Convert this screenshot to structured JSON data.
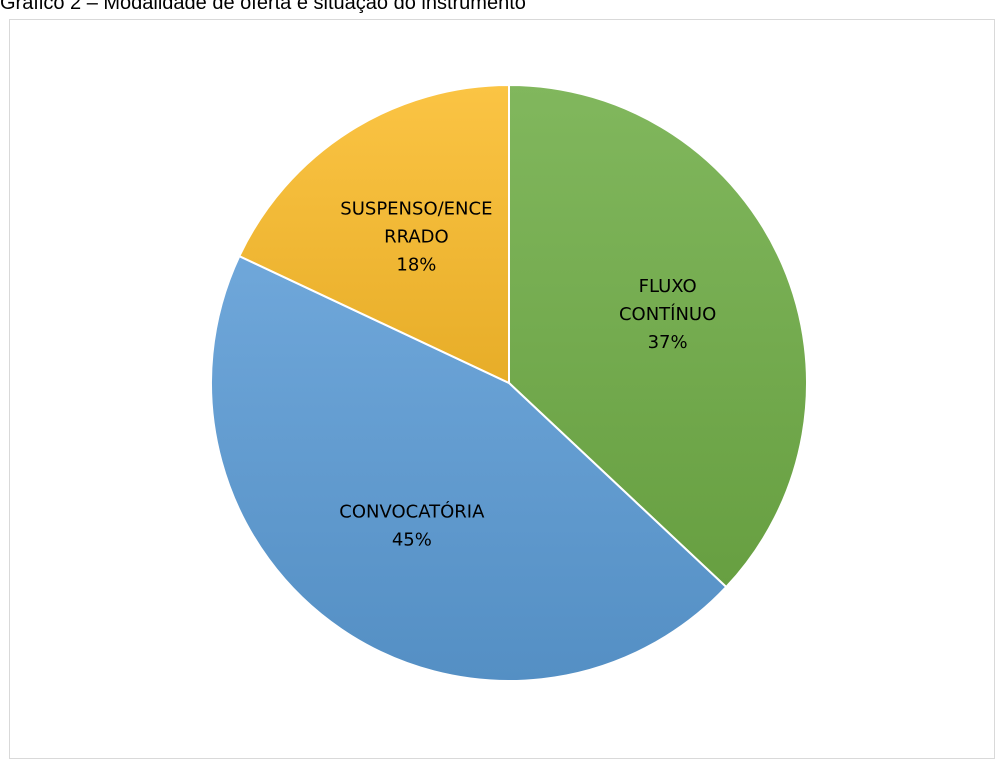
{
  "caption": "Gráfico 2 – Modalidade de oferta e situação do instrumento",
  "chart_data": {
    "type": "pie",
    "title": "",
    "slices": [
      {
        "label": "FLUXO CONTÍNUO",
        "label_lines": [
          "FLUXO",
          "CONTÍNUO"
        ],
        "value": 37,
        "percent_label": "37%",
        "color": "#70ad47"
      },
      {
        "label": "CONVOCATÓRIA",
        "label_lines": [
          "CONVOCATÓRIA"
        ],
        "value": 45,
        "percent_label": "45%",
        "color": "#5b9bd5"
      },
      {
        "label": "SUSPENSO/ENCERRADO",
        "label_lines": [
          "SUSPENSO/ENCE",
          "RRADO"
        ],
        "value": 18,
        "percent_label": "18%",
        "color": "#fbbc2b"
      }
    ],
    "start": "12 o'clock",
    "direction": "clockwise",
    "legend": "none"
  }
}
